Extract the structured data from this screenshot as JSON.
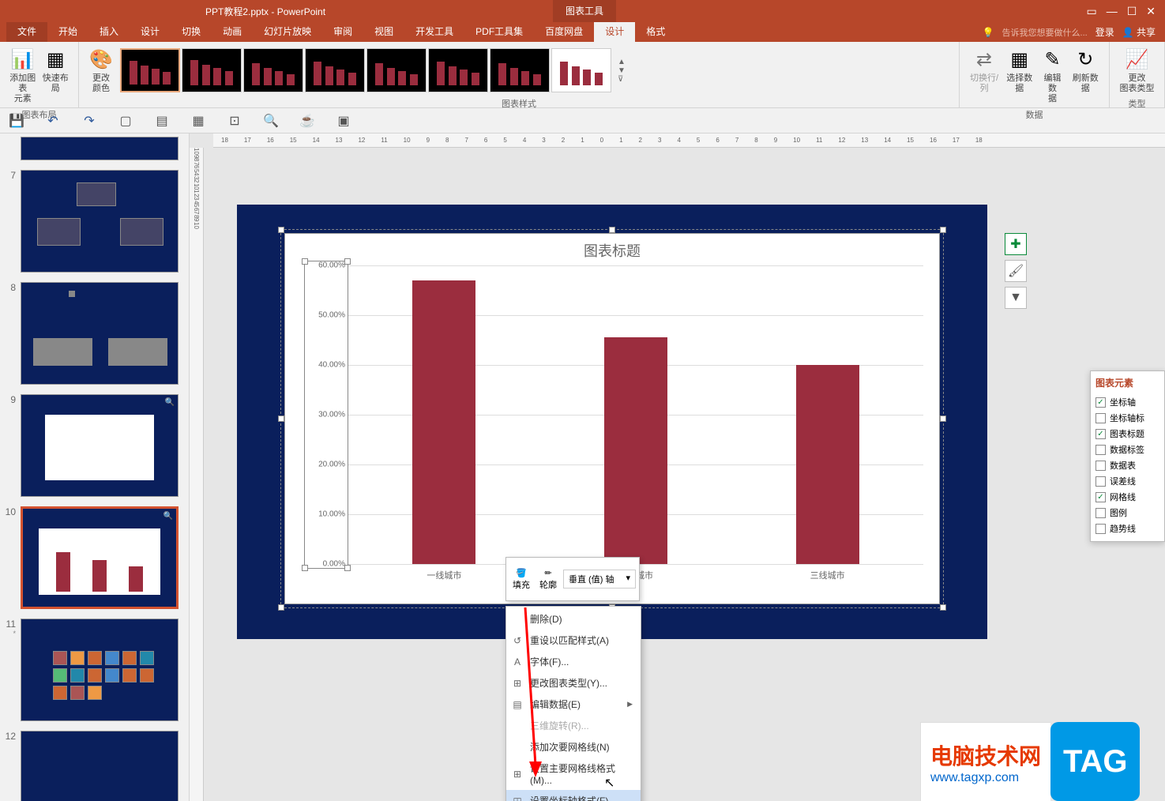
{
  "title_bar": {
    "doc_title": "PPT教程2.pptx - PowerPoint",
    "chart_tools": "图表工具",
    "login": "登录",
    "share": "共享"
  },
  "menu": {
    "file": "文件",
    "tabs": [
      "开始",
      "插入",
      "设计",
      "切换",
      "动画",
      "幻灯片放映",
      "审阅",
      "视图",
      "开发工具",
      "PDF工具集",
      "百度网盘",
      "设计",
      "格式"
    ],
    "active_index": 11,
    "tell_me": "告诉我您想要做什么..."
  },
  "ribbon": {
    "btn_add_element": "添加图表\n元素",
    "btn_quick_layout": "快速布局",
    "group_layout": "图表布局",
    "btn_change_color": "更改\n颜色",
    "group_styles": "图表样式",
    "btn_swap": "切换行/列",
    "btn_select_data": "选择数据",
    "btn_edit_data": "编辑数\n据",
    "btn_refresh": "刷新数据",
    "group_data": "数据",
    "btn_change_type": "更改\n图表类型",
    "group_type": "类型"
  },
  "slides": [
    {
      "num": "7"
    },
    {
      "num": "8"
    },
    {
      "num": "9"
    },
    {
      "num": "10",
      "selected": true
    },
    {
      "num": "11",
      "modified": true
    },
    {
      "num": "12"
    }
  ],
  "chart": {
    "title": "图表标题",
    "y_labels": [
      "60.00%",
      "50.00%",
      "40.00%",
      "30.00%",
      "20.00%",
      "10.00%",
      "0.00%"
    ],
    "y_max": 60,
    "bars": [
      {
        "label": "一线城市",
        "value": 57
      },
      {
        "label": "二线城市",
        "value": 45.5
      },
      {
        "label": "三线城市",
        "value": 40
      }
    ],
    "bar_color": "#9b2d3e",
    "background": "#ffffff",
    "grid_color": "#dddddd",
    "slide_bg": "#0a1f5c"
  },
  "mini_toolbar": {
    "fill": "填充",
    "outline": "轮廓",
    "axis_select": "垂直 (值) 轴"
  },
  "context_menu": {
    "items": [
      {
        "label": "删除(D)"
      },
      {
        "label": "重设以匹配样式(A)",
        "icon": "↺"
      },
      {
        "label": "字体(F)...",
        "icon": "A"
      },
      {
        "label": "更改图表类型(Y)...",
        "icon": "⊞"
      },
      {
        "label": "编辑数据(E)",
        "icon": "▤",
        "arrow": true
      },
      {
        "label": "三维旋转(R)...",
        "disabled": true
      },
      {
        "label": "添加次要网格线(N)"
      },
      {
        "label": "设置主要网格线格式(M)...",
        "icon": "⊞"
      },
      {
        "label": "设置坐标轴格式(F)...",
        "icon": "◫",
        "highlighted": true
      }
    ]
  },
  "chart_elements": {
    "title": "图表元素",
    "items": [
      {
        "label": "坐标轴",
        "checked": true
      },
      {
        "label": "坐标轴标",
        "checked": false
      },
      {
        "label": "图表标题",
        "checked": true
      },
      {
        "label": "数据标签",
        "checked": false
      },
      {
        "label": "数据表",
        "checked": false
      },
      {
        "label": "误差线",
        "checked": false
      },
      {
        "label": "网格线",
        "checked": true
      },
      {
        "label": "图例",
        "checked": false
      },
      {
        "label": "趋势线",
        "checked": false
      }
    ]
  },
  "watermark": {
    "line1": "电脑技术网",
    "line2": "www.tagxp.com",
    "tag": "TAG"
  },
  "ruler_h": [
    "18",
    "17",
    "16",
    "15",
    "14",
    "13",
    "12",
    "11",
    "10",
    "9",
    "8",
    "7",
    "6",
    "5",
    "4",
    "3",
    "2",
    "1",
    "0",
    "1",
    "2",
    "3",
    "4",
    "5",
    "6",
    "7",
    "8",
    "9",
    "10",
    "11",
    "12",
    "13",
    "14",
    "15",
    "16",
    "17",
    "18"
  ],
  "ruler_v": [
    "10",
    "9",
    "8",
    "7",
    "6",
    "5",
    "4",
    "3",
    "2",
    "1",
    "0",
    "1",
    "2",
    "3",
    "4",
    "5",
    "6",
    "7",
    "8",
    "9",
    "10"
  ]
}
